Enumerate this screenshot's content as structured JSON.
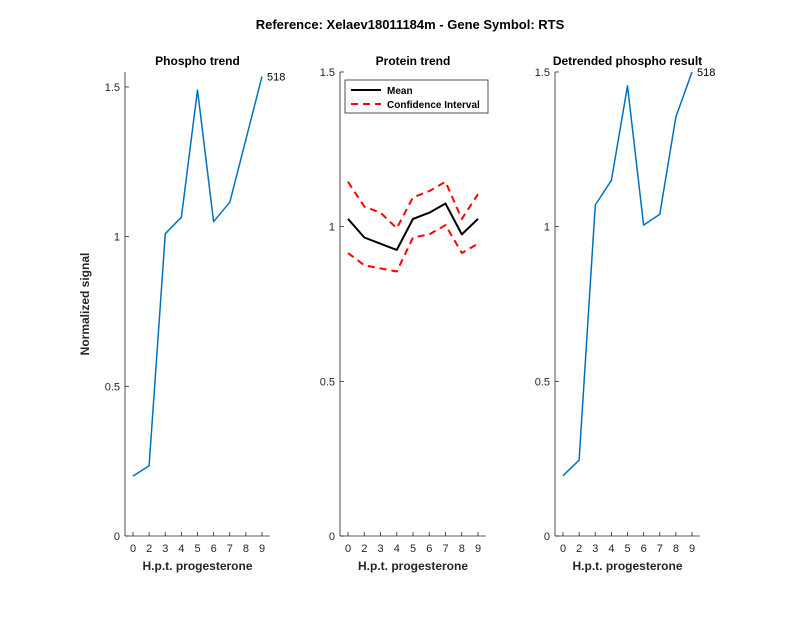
{
  "figure": {
    "suptitle": "Reference:  Xelaev18011184m - Gene Symbol:  RTS"
  },
  "chart_data": [
    {
      "type": "line",
      "title": "Phospho trend",
      "xlabel": "H.p.t. progesterone",
      "ylabel": "Normalized signal",
      "categories": [
        "0",
        "2",
        "3",
        "4",
        "5",
        "6",
        "7",
        "8",
        "9"
      ],
      "ylim": [
        0,
        1.55
      ],
      "yticks": [
        0,
        0.5,
        1,
        1.5
      ],
      "ytick_labels": [
        "0",
        "0.5",
        "1",
        "1.5"
      ],
      "series": [
        {
          "values": [
            0.2,
            0.235,
            1.01,
            1.065,
            1.49,
            1.05,
            1.115,
            1.325,
            1.535
          ],
          "color": "#0072BD",
          "style": "solid",
          "end_label": "518"
        }
      ],
      "legend": null,
      "grid": false
    },
    {
      "type": "line",
      "title": "Protein trend",
      "xlabel": "H.p.t. progesterone",
      "ylabel": "",
      "categories": [
        "0",
        "2",
        "3",
        "4",
        "5",
        "6",
        "7",
        "8",
        "9"
      ],
      "ylim": [
        0,
        1.5
      ],
      "yticks": [
        0,
        0.5,
        1,
        1.5
      ],
      "ytick_labels": [
        "0",
        "0.5",
        "1",
        "1.5"
      ],
      "series": [
        {
          "name": "Mean",
          "values": [
            1.025,
            0.965,
            0.945,
            0.925,
            1.025,
            1.045,
            1.075,
            0.975,
            1.025
          ],
          "color": "#000000",
          "style": "solid"
        },
        {
          "name": "Confidence Interval",
          "values": [
            1.145,
            1.065,
            1.045,
            0.995,
            1.095,
            1.115,
            1.145,
            1.025,
            1.105
          ],
          "color": "#FF0000",
          "style": "dashed"
        },
        {
          "values": [
            0.915,
            0.875,
            0.865,
            0.855,
            0.965,
            0.975,
            1.005,
            0.915,
            0.945
          ],
          "color": "#FF0000",
          "style": "dashed"
        }
      ],
      "legend": {
        "placement": "top-left",
        "entries": [
          "Mean",
          "Confidence Interval"
        ]
      },
      "grid": false
    },
    {
      "type": "line",
      "title": "Detrended phospho result",
      "xlabel": "H.p.t. progesterone",
      "ylabel": "",
      "categories": [
        "0",
        "2",
        "3",
        "4",
        "5",
        "6",
        "7",
        "8",
        "9"
      ],
      "ylim": [
        0,
        1.5
      ],
      "yticks": [
        0,
        0.5,
        1,
        1.5
      ],
      "ytick_labels": [
        "0",
        "0.5",
        "1",
        "1.5"
      ],
      "series": [
        {
          "values": [
            0.195,
            0.245,
            1.07,
            1.15,
            1.455,
            1.005,
            1.04,
            1.355,
            1.5
          ],
          "color": "#0072BD",
          "style": "solid",
          "end_label": "518"
        }
      ],
      "legend": null,
      "grid": false
    }
  ]
}
